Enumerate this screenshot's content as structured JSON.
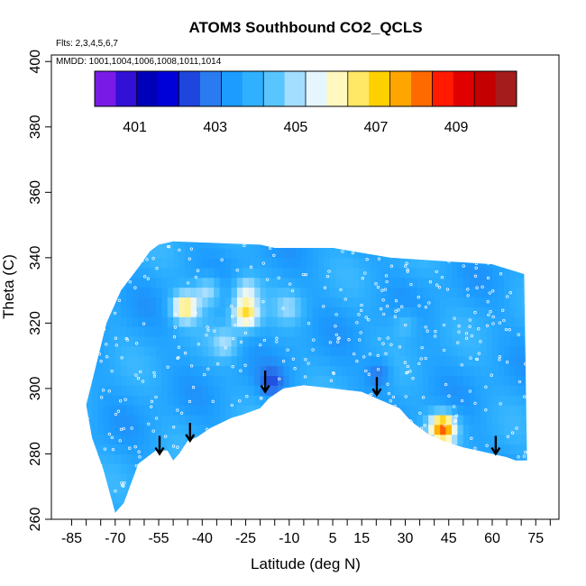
{
  "chart_data": {
    "type": "heatmap",
    "title": "ATOM3 Southbound CO2_QCLS",
    "flights_note": "Flts: 2,3,4,5,6,7",
    "dates_note": "MMDD: 1001,1004,1006,1008,1011,1014",
    "xlabel": "Latitude (deg N)",
    "ylabel": "Theta (C)",
    "xlim": [
      -92,
      83
    ],
    "ylim": [
      260,
      402
    ],
    "x_ticks_labeled": [
      -85,
      -70,
      -55,
      -40,
      -25,
      -10,
      5,
      15,
      30,
      45,
      60,
      75
    ],
    "x_ticks_minor": [
      -80,
      -75,
      -65,
      -60,
      -50,
      -45,
      -35,
      -30,
      -20,
      -15,
      -5,
      0,
      10,
      20,
      25,
      35,
      40,
      50,
      55,
      65,
      70,
      80
    ],
    "y_ticks": [
      260,
      280,
      300,
      320,
      340,
      360,
      380,
      400
    ],
    "colorbar": {
      "range": [
        400,
        410.5
      ],
      "tick_labels": [
        401,
        403,
        405,
        407,
        409
      ],
      "colors": [
        "#7a1ae6",
        "#3210d6",
        "#0000b8",
        "#0000d9",
        "#1e46dc",
        "#2a7bef",
        "#1c9cff",
        "#2fb1ff",
        "#59c5ff",
        "#a3ddff",
        "#e6f6ff",
        "#fff8bf",
        "#ffe866",
        "#ffd000",
        "#ffa500",
        "#ff6a00",
        "#ff1a00",
        "#e00000",
        "#c40000",
        "#a41c1c"
      ]
    },
    "background_value": 403.6,
    "anomalies": [
      {
        "lat": -46,
        "theta": 325,
        "value": 406.6
      },
      {
        "lat": -25,
        "theta": 323,
        "value": 406.8
      },
      {
        "lat": 43,
        "theta": 288,
        "value": 408.2
      },
      {
        "lat": -38,
        "theta": 330,
        "value": 405.2
      },
      {
        "lat": -25,
        "theta": 330,
        "value": 405.3
      },
      {
        "lat": -32,
        "theta": 314,
        "value": 404.8
      },
      {
        "lat": -16,
        "theta": 302,
        "value": 402.6
      },
      {
        "lat": 21,
        "theta": 305,
        "value": 402.6
      },
      {
        "lat": -10,
        "theta": 325,
        "value": 404.6
      },
      {
        "lat": 30,
        "theta": 320,
        "value": 404.4
      }
    ],
    "upper_boundary": [
      [
        -78,
        302
      ],
      [
        -73,
        320
      ],
      [
        -68,
        330
      ],
      [
        -62,
        337
      ],
      [
        -58,
        342
      ],
      [
        -55,
        344
      ],
      [
        -50,
        345
      ],
      [
        -20,
        344
      ],
      [
        -15,
        343
      ],
      [
        5,
        343
      ],
      [
        25,
        340
      ],
      [
        60,
        338
      ],
      [
        71,
        335
      ]
    ],
    "lower_boundary": [
      [
        -80,
        295
      ],
      [
        -78,
        285
      ],
      [
        -74,
        275
      ],
      [
        -70,
        262
      ],
      [
        -67,
        265
      ],
      [
        -62,
        277
      ],
      [
        -56,
        281
      ],
      [
        -52,
        281
      ],
      [
        -50,
        278
      ],
      [
        -48,
        280
      ],
      [
        -45,
        284
      ],
      [
        -42,
        285
      ],
      [
        -37,
        288
      ],
      [
        -30,
        291
      ],
      [
        -26,
        292
      ],
      [
        -20,
        294
      ],
      [
        -17,
        297
      ],
      [
        -12,
        300
      ],
      [
        -5,
        301
      ],
      [
        5,
        300
      ],
      [
        15,
        299
      ],
      [
        20,
        297
      ],
      [
        28,
        294
      ],
      [
        32,
        290
      ],
      [
        38,
        286
      ],
      [
        43,
        284
      ],
      [
        50,
        282
      ],
      [
        55,
        281
      ],
      [
        65,
        279
      ],
      [
        68,
        278
      ],
      [
        72,
        278
      ]
    ],
    "arrows": [
      {
        "lat": -54.7,
        "theta_top": 285.5,
        "theta_tip": 280
      },
      {
        "lat": -44.2,
        "theta_top": 289.5,
        "theta_tip": 284
      },
      {
        "lat": -18.3,
        "theta_top": 305.5,
        "theta_tip": 299
      },
      {
        "lat": 20.2,
        "theta_top": 303.5,
        "theta_tip": 298
      },
      {
        "lat": 61.2,
        "theta_top": 285.5,
        "theta_tip": 280
      }
    ]
  }
}
